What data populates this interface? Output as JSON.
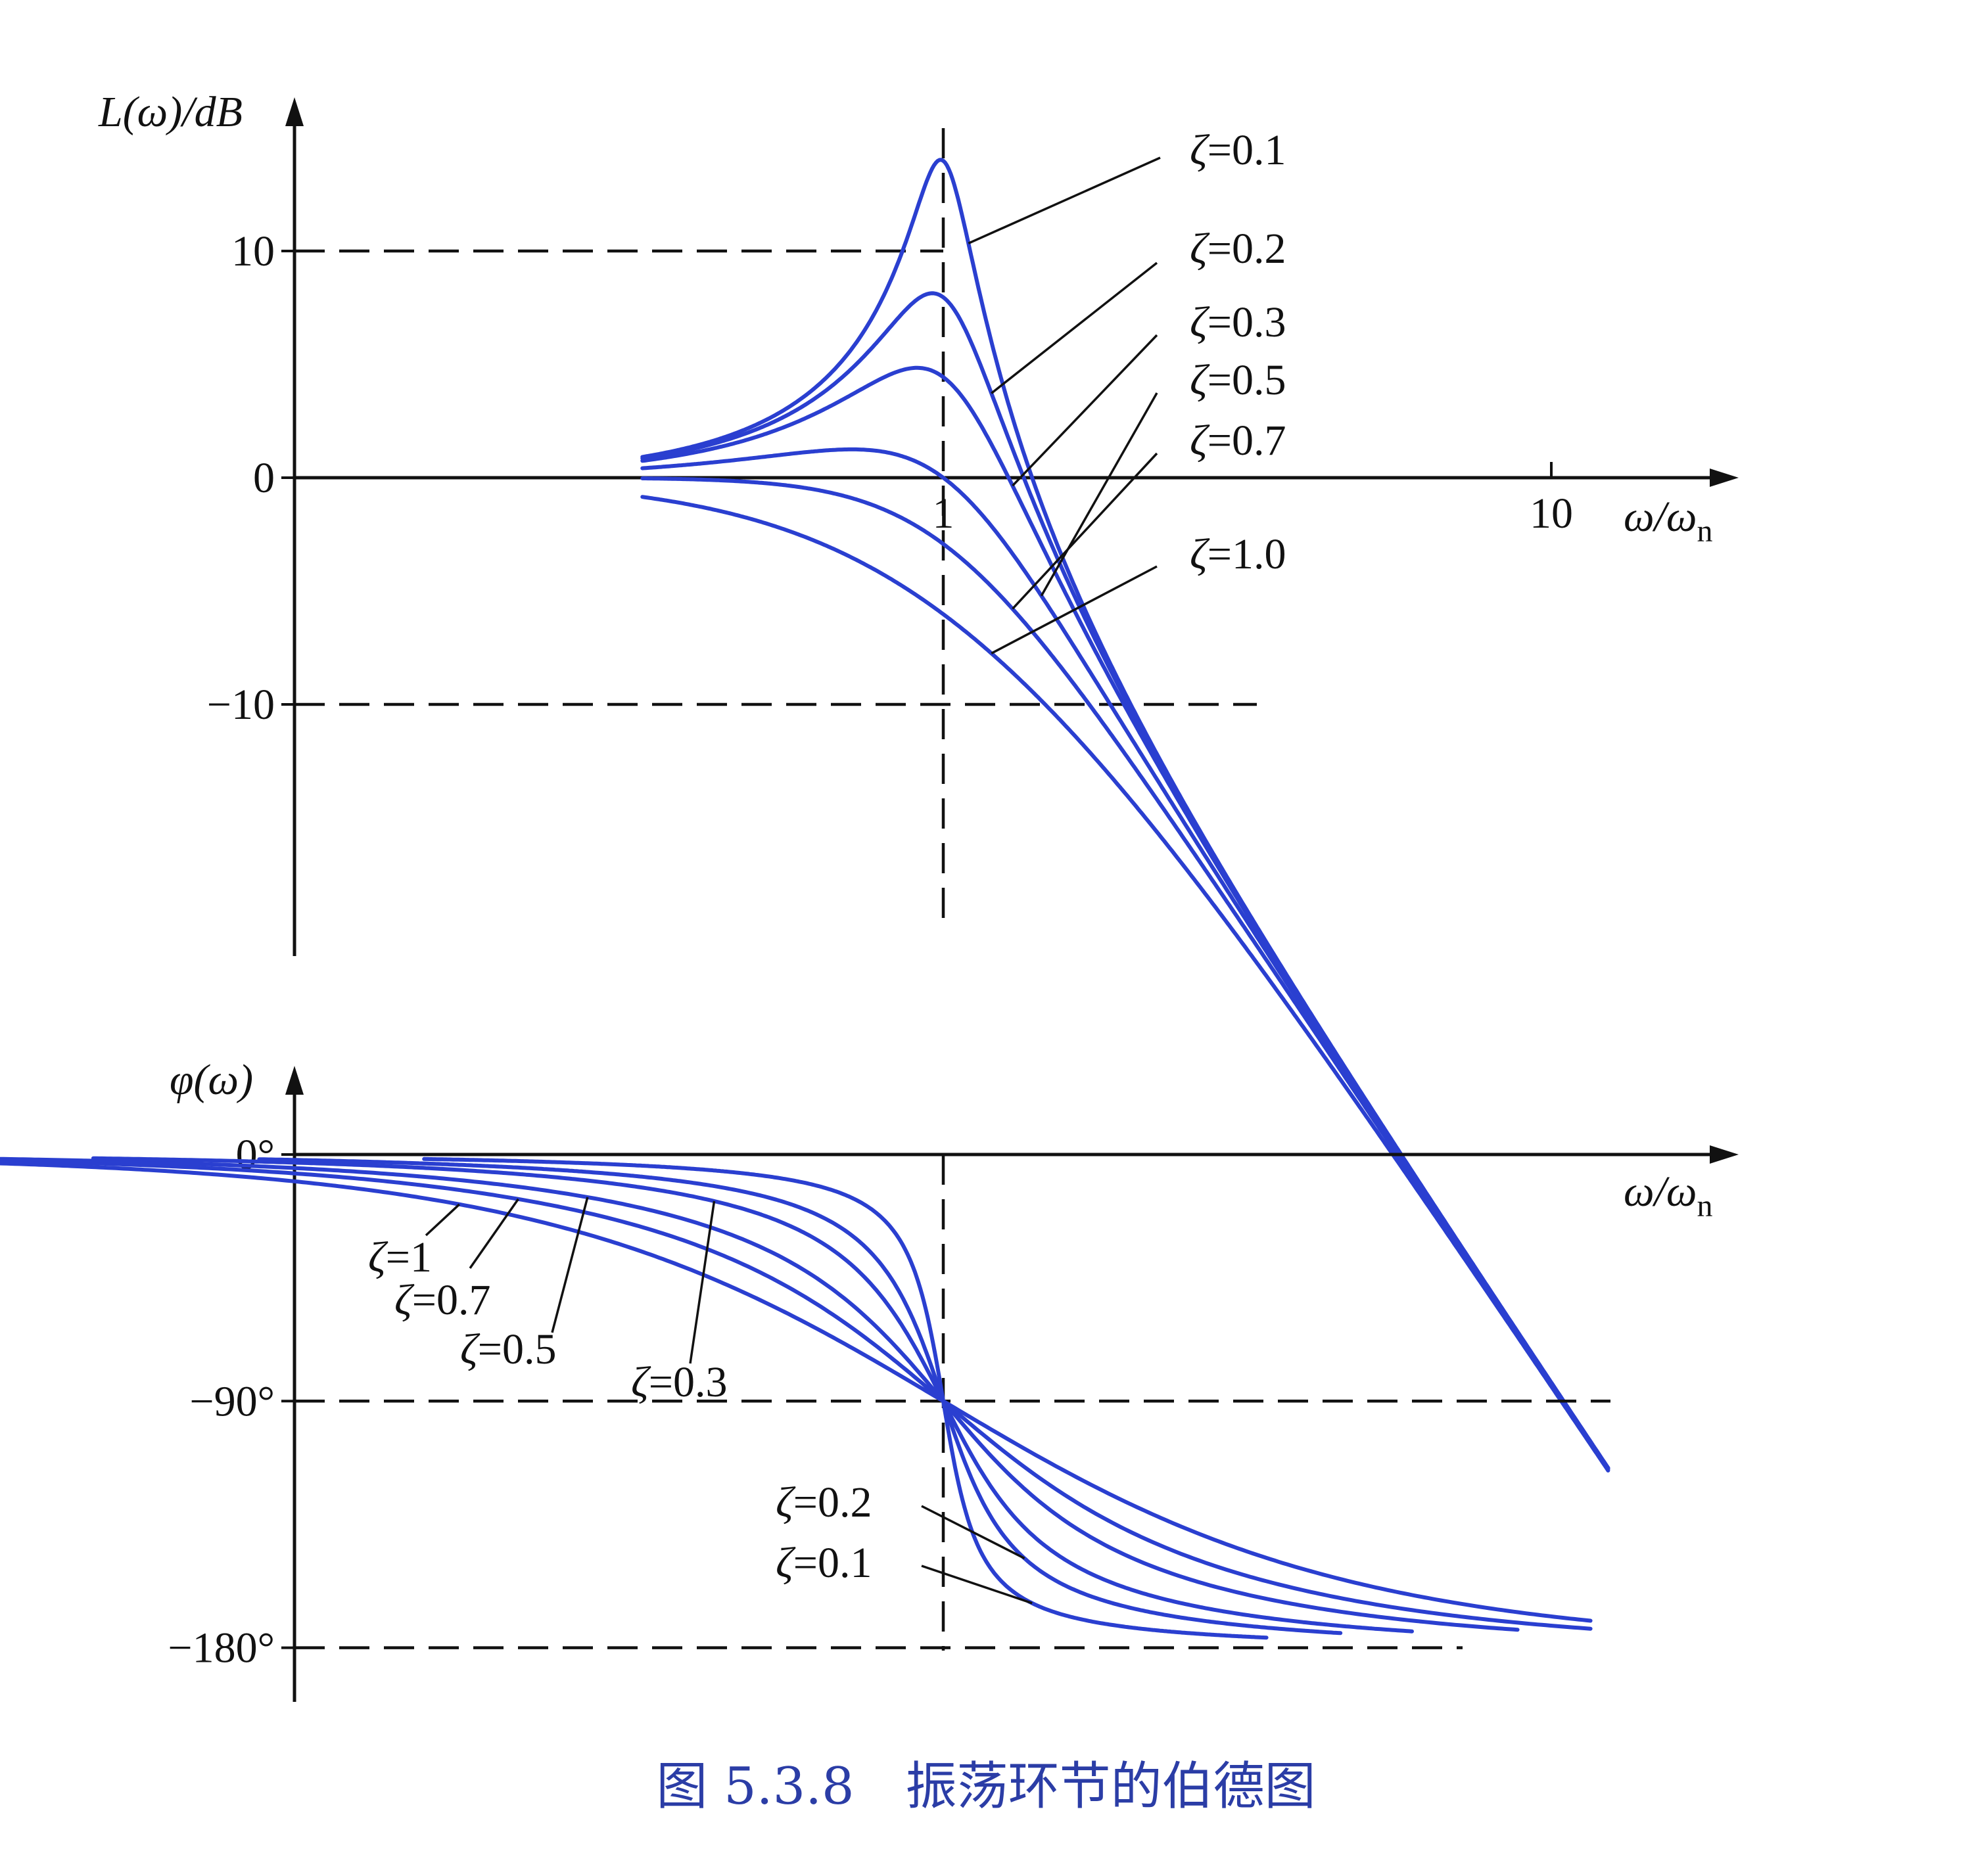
{
  "chart_data": [
    {
      "type": "line",
      "panel": "magnitude",
      "ylabel": "L(ω)/dB",
      "xlabel": "ω/ωn",
      "x_scale": "log",
      "xlim": [
        0.01,
        20
      ],
      "ylim": [
        -21,
        14
      ],
      "yticks": [
        {
          "value": 10,
          "label": "10"
        },
        {
          "value": 0,
          "label": "0"
        },
        {
          "value": -10,
          "label": "−10"
        }
      ],
      "xticks": [
        {
          "value": 1,
          "label": "1"
        },
        {
          "value": 10,
          "label": "10"
        }
      ],
      "guides": {
        "horizontal": [
          10,
          -10
        ],
        "vertical": [
          1
        ]
      },
      "series": [
        {
          "name": "ζ=0.1",
          "zeta": 0.1
        },
        {
          "name": "ζ=0.2",
          "zeta": 0.2
        },
        {
          "name": "ζ=0.3",
          "zeta": 0.3
        },
        {
          "name": "ζ=0.5",
          "zeta": 0.5
        },
        {
          "name": "ζ=0.7",
          "zeta": 0.7
        },
        {
          "name": "ζ=1.0",
          "zeta": 1.0
        }
      ]
    },
    {
      "type": "line",
      "panel": "phase",
      "ylabel": "φ(ω)",
      "xlabel": "ω/ωn",
      "x_scale": "log",
      "xlim": [
        0.01,
        20
      ],
      "ylim": [
        -180,
        0
      ],
      "yticks": [
        {
          "value": 0,
          "label": "0°"
        },
        {
          "value": -90,
          "label": "−90°"
        },
        {
          "value": -180,
          "label": "−180°"
        }
      ],
      "guides": {
        "horizontal": [
          -90,
          -180
        ],
        "vertical": [
          1
        ]
      },
      "series": [
        {
          "name": "ζ=1",
          "zeta": 1.0
        },
        {
          "name": "ζ=0.7",
          "zeta": 0.7
        },
        {
          "name": "ζ=0.5",
          "zeta": 0.5
        },
        {
          "name": "ζ=0.3",
          "zeta": 0.3
        },
        {
          "name": "ζ=0.2",
          "zeta": 0.2
        },
        {
          "name": "ζ=0.1",
          "zeta": 0.1
        }
      ]
    }
  ],
  "caption": "图 5.3.8　振荡环节的伯德图",
  "colors": {
    "curve": "#2a3fd0",
    "axis": "#111111",
    "caption": "#2b3da6"
  }
}
